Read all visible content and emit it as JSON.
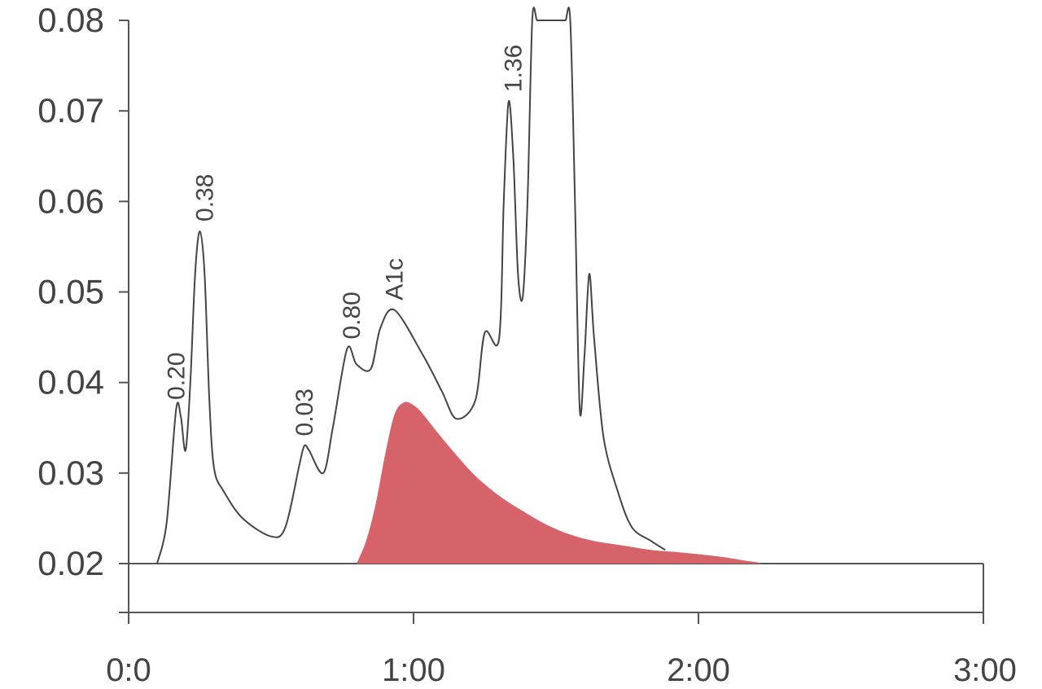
{
  "chart_data": {
    "type": "area",
    "title": "",
    "xlabel": "",
    "ylabel": "",
    "xlim": [
      "0:0",
      "3:00"
    ],
    "ylim": [
      0.02,
      0.08
    ],
    "y_ticks": [
      "0.08",
      "0.07",
      "0.06",
      "0.05",
      "0.04",
      "0.03",
      "0.02"
    ],
    "x_ticks": [
      "0:0",
      "1:00",
      "2:00",
      "3:00"
    ],
    "grid": false,
    "peak_labels": [
      {
        "text": "0.20",
        "x": "0:10",
        "y": 0.037
      },
      {
        "text": "0.38",
        "x": "0:16",
        "y": 0.0567
      },
      {
        "text": "0.03",
        "x": "0:37",
        "y": 0.033
      },
      {
        "text": "0.80",
        "x": "0:47",
        "y": 0.0437
      },
      {
        "text": "A1c",
        "x": "0:56",
        "y": 0.048
      },
      {
        "text": "1.36",
        "x": "1:21",
        "y": 0.071
      }
    ],
    "series": [
      {
        "kind": "trace",
        "x": [
          "0:06",
          "0:08",
          "0:10",
          "0:11",
          "0:12",
          "0:13",
          "0:14",
          "0:15",
          "0:16",
          "0:17",
          "0:18",
          "0:20",
          "0:24",
          "0:30",
          "0:33",
          "0:36",
          "0:37",
          "0:38",
          "0:41",
          "0:43",
          "0:46",
          "0:48",
          "0:51",
          "0:53",
          "0:56",
          "1:02",
          "1:06",
          "1:09",
          "1:13",
          "1:15",
          "1:18",
          "1:19",
          "1:20",
          "1:21",
          "1:22",
          "1:23",
          "1:24",
          "1:25",
          "1:26",
          "1:27",
          "1:28",
          "1:29",
          "1:30",
          "1:31",
          "1:32",
          "1:33",
          "1:34",
          "1:35",
          "1:36",
          "1:37",
          "1:38",
          "1:40",
          "1:43",
          "1:46",
          "1:50",
          "1:53"
        ],
        "y": [
          0.02,
          0.0245,
          0.037,
          0.0362,
          0.0325,
          0.04,
          0.052,
          0.0567,
          0.052,
          0.038,
          0.0305,
          0.028,
          0.025,
          0.023,
          0.024,
          0.031,
          0.033,
          0.0325,
          0.03,
          0.035,
          0.0437,
          0.042,
          0.0415,
          0.046,
          0.048,
          0.043,
          0.039,
          0.036,
          0.038,
          0.0455,
          0.0448,
          0.06,
          0.071,
          0.065,
          0.052,
          0.0495,
          0.06,
          0.08,
          0.08,
          0.08,
          0.08,
          0.08,
          0.08,
          0.08,
          0.08,
          0.08,
          0.06,
          0.037,
          0.043,
          0.052,
          0.045,
          0.034,
          0.028,
          0.024,
          0.0225,
          0.0215
        ]
      },
      {
        "kind": "filled",
        "name": "A1c",
        "color": "#d6626a",
        "x": [
          "0:48",
          "0:50",
          "0:52",
          "0:54",
          "0:56",
          "0:58",
          "1:00",
          "1:02",
          "1:05",
          "1:09",
          "1:13",
          "1:18",
          "1:23",
          "1:28",
          "1:33",
          "1:38",
          "1:44",
          "1:50",
          "1:57",
          "2:04",
          "2:09",
          "2:13"
        ],
        "y": [
          0.02,
          0.0225,
          0.0265,
          0.032,
          0.0365,
          0.0378,
          0.0375,
          0.0365,
          0.0345,
          0.032,
          0.0297,
          0.0275,
          0.0258,
          0.0243,
          0.0232,
          0.0225,
          0.022,
          0.0215,
          0.0212,
          0.0208,
          0.0204,
          0.0201
        ]
      }
    ]
  }
}
